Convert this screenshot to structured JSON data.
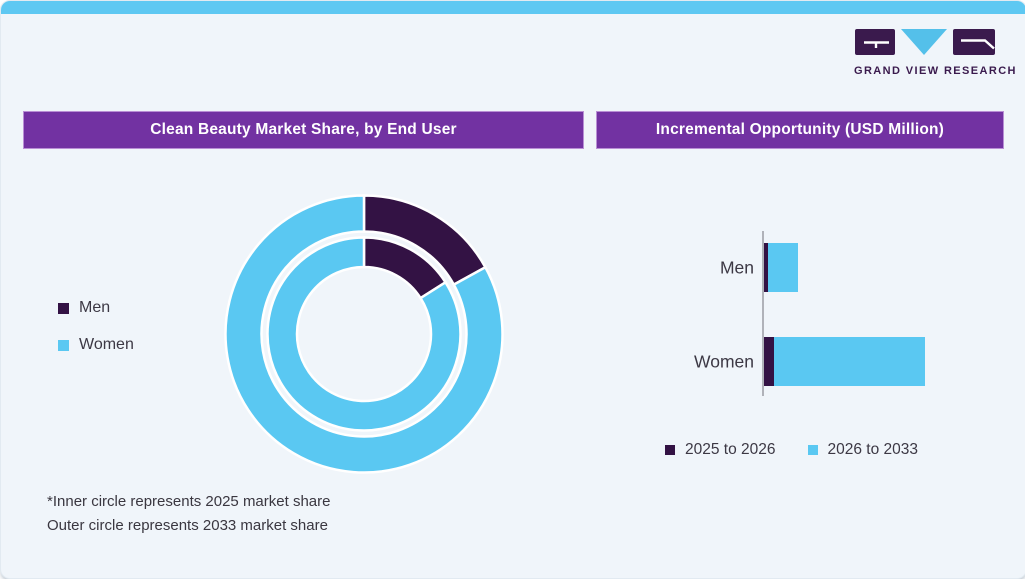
{
  "header": {
    "logo_text": "GRAND VIEW RESEARCH"
  },
  "palette": {
    "banner_purple": "#7232A2",
    "top_strip_blue": "#5EC8F2",
    "dark_purple": "#331244",
    "light_blue": "#5AC8F2",
    "card_background": "#F0F5FA",
    "logo_dark": "#3A1A4D",
    "logo_blue": "#54C0EA"
  },
  "chart_data": [
    {
      "type": "donut",
      "title": "Clean Beauty Market Share, by End User",
      "unit": "%",
      "start_angle_deg": 0,
      "rings": [
        {
          "name": "inner",
          "represents": "2025 market share",
          "segments": [
            {
              "label": "Men",
              "value": 16
            },
            {
              "label": "Women",
              "value": 84
            }
          ]
        },
        {
          "name": "outer",
          "represents": "2033 market share",
          "segments": [
            {
              "label": "Men",
              "value": 17
            },
            {
              "label": "Women",
              "value": 83
            }
          ]
        }
      ],
      "legend": [
        "Men",
        "Women"
      ],
      "colors": {
        "Men": "#331244",
        "Women": "#5AC8F2"
      },
      "footnotes": [
        "*Inner circle represents 2025 market share",
        "Outer circle represents 2033 market share"
      ]
    },
    {
      "type": "bar",
      "orientation": "horizontal",
      "stacked": true,
      "title": "Incremental Opportunity (USD Million)",
      "categories": [
        "Men",
        "Women"
      ],
      "series": [
        {
          "name": "2025 to 2026",
          "color": "#331244",
          "values": [
            4,
            10
          ]
        },
        {
          "name": "2026 to 2033",
          "color": "#5AC8F2",
          "values": [
            30,
            151
          ]
        }
      ],
      "value_axis_labels_visible": false,
      "note": "No numeric axis shown; values are relative magnitudes estimated from bar lengths"
    }
  ]
}
